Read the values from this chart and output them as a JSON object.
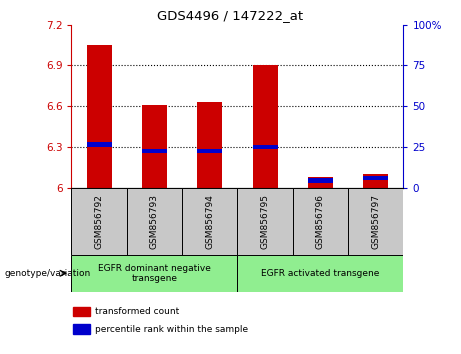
{
  "title": "GDS4496 / 147222_at",
  "samples": [
    "GSM856792",
    "GSM856793",
    "GSM856794",
    "GSM856795",
    "GSM856796",
    "GSM856797"
  ],
  "red_values": [
    7.05,
    6.61,
    6.63,
    6.9,
    6.08,
    6.1
  ],
  "blue_values": [
    6.32,
    6.27,
    6.27,
    6.3,
    6.05,
    6.07
  ],
  "ylim_left": [
    6.0,
    7.2
  ],
  "ylim_right": [
    0,
    100
  ],
  "yticks_left": [
    6.0,
    6.3,
    6.6,
    6.9,
    7.2
  ],
  "yticks_right": [
    0,
    25,
    50,
    75,
    100
  ],
  "ytick_labels_left": [
    "6",
    "6.3",
    "6.6",
    "6.9",
    "7.2"
  ],
  "ytick_labels_right": [
    "0",
    "25",
    "50",
    "75",
    "100%"
  ],
  "groups": [
    {
      "label": "EGFR dominant negative\ntransgene",
      "span": [
        0,
        3
      ]
    },
    {
      "label": "EGFR activated transgene",
      "span": [
        3,
        6
      ]
    }
  ],
  "bar_bottom": 6.0,
  "red_color": "#CC0000",
  "blue_color": "#0000CC",
  "bar_width": 0.45,
  "bg_color": "#FFFFFF",
  "plot_bg_color": "#FFFFFF",
  "cell_bg_color": "#C8C8C8",
  "group_bg_color": "#90EE90",
  "legend_red": "transformed count",
  "legend_blue": "percentile rank within the sample",
  "genotype_label": "genotype/variation",
  "left_color": "#CC0000",
  "right_color": "#0000CC",
  "grid_yticks": [
    6.3,
    6.6,
    6.9
  ]
}
